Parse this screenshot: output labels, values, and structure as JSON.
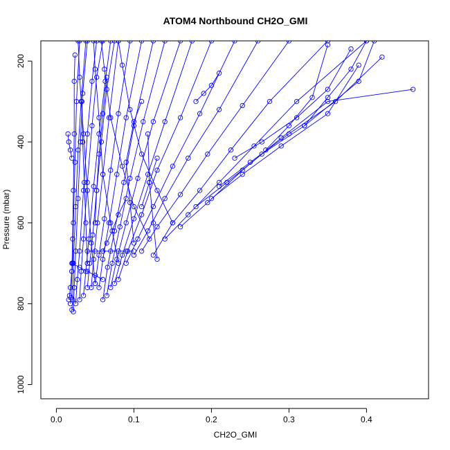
{
  "chart_data": {
    "type": "line",
    "title": "ATOM4 Northbound CH2O_GMI",
    "xlabel": "CH2O_GMI",
    "ylabel": "Pressure (mbar)",
    "xlim": [
      -0.02,
      0.48
    ],
    "ylim": [
      1035,
      150
    ],
    "y_reversed": true,
    "grid": false,
    "legend": "none",
    "x_ticks": [
      0.0,
      0.1,
      0.2,
      0.3,
      0.4
    ],
    "x_tick_labels": [
      "0.0",
      "0.1",
      "0.2",
      "0.3",
      "0.4"
    ],
    "y_ticks": [
      200,
      400,
      600,
      800,
      1000
    ],
    "y_tick_labels": [
      "200",
      "400",
      "600",
      "800",
      "1000"
    ],
    "marker": "open-circle",
    "color": "#0000ff",
    "series": [
      {
        "x": [
          0.016,
          0.017,
          0.018,
          0.02,
          0.021,
          0.022,
          0.024,
          0.026,
          0.03
        ],
        "y": [
          790,
          780,
          760,
          720,
          700,
          600,
          450,
          300,
          150
        ]
      },
      {
        "x": [
          0.018,
          0.019,
          0.02,
          0.021,
          0.022,
          0.023,
          0.023,
          0.024
        ],
        "y": [
          800,
          785,
          720,
          640,
          520,
          380,
          250,
          185
        ]
      },
      {
        "x": [
          0.02,
          0.021,
          0.022,
          0.025,
          0.028,
          0.032,
          0.038
        ],
        "y": [
          815,
          790,
          700,
          560,
          420,
          300,
          150
        ]
      },
      {
        "x": [
          0.022,
          0.023,
          0.025,
          0.028,
          0.031,
          0.034,
          0.04
        ],
        "y": [
          820,
          760,
          670,
          540,
          400,
          280,
          150
        ]
      },
      {
        "x": [
          0.025,
          0.027,
          0.03,
          0.035,
          0.04,
          0.046,
          0.052
        ],
        "y": [
          800,
          740,
          670,
          520,
          380,
          250,
          150
        ]
      },
      {
        "x": [
          0.03,
          0.032,
          0.035,
          0.04,
          0.046,
          0.052,
          0.06
        ],
        "y": [
          790,
          720,
          640,
          500,
          360,
          240,
          150
        ]
      },
      {
        "x": [
          0.035,
          0.038,
          0.042,
          0.048,
          0.055,
          0.063,
          0.07
        ],
        "y": [
          780,
          720,
          640,
          510,
          380,
          250,
          150
        ]
      },
      {
        "x": [
          0.04,
          0.043,
          0.047,
          0.052,
          0.058,
          0.065,
          0.075
        ],
        "y": [
          760,
          700,
          630,
          520,
          400,
          270,
          150
        ]
      },
      {
        "x": [
          0.045,
          0.048,
          0.053,
          0.06,
          0.068,
          0.08
        ],
        "y": [
          760,
          690,
          600,
          480,
          340,
          150
        ]
      },
      {
        "x": [
          0.05,
          0.055,
          0.062,
          0.07,
          0.08,
          0.095
        ],
        "y": [
          750,
          680,
          590,
          470,
          330,
          150
        ]
      },
      {
        "x": [
          0.055,
          0.06,
          0.068,
          0.078,
          0.09,
          0.11
        ],
        "y": [
          760,
          690,
          600,
          480,
          340,
          150
        ]
      },
      {
        "x": [
          0.06,
          0.066,
          0.075,
          0.087,
          0.1,
          0.125
        ],
        "y": [
          790,
          710,
          620,
          500,
          360,
          150
        ]
      },
      {
        "x": [
          0.065,
          0.072,
          0.082,
          0.095,
          0.112,
          0.14
        ],
        "y": [
          780,
          700,
          610,
          490,
          350,
          150
        ]
      },
      {
        "x": [
          0.07,
          0.078,
          0.09,
          0.105,
          0.125,
          0.16
        ],
        "y": [
          760,
          690,
          600,
          490,
          350,
          150
        ]
      },
      {
        "x": [
          0.075,
          0.085,
          0.1,
          0.118,
          0.14,
          0.175
        ],
        "y": [
          750,
          680,
          590,
          480,
          350,
          150
        ]
      },
      {
        "x": [
          0.08,
          0.092,
          0.11,
          0.13,
          0.16,
          0.2
        ],
        "y": [
          740,
          670,
          580,
          470,
          340,
          150
        ]
      },
      {
        "x": [
          0.09,
          0.105,
          0.125,
          0.15,
          0.185,
          0.23
        ],
        "y": [
          700,
          640,
          560,
          460,
          330,
          150
        ]
      },
      {
        "x": [
          0.1,
          0.118,
          0.14,
          0.17,
          0.21,
          0.26
        ],
        "y": [
          680,
          620,
          540,
          440,
          320,
          150
        ]
      },
      {
        "x": [
          0.11,
          0.13,
          0.16,
          0.195,
          0.24,
          0.3
        ],
        "y": [
          670,
          610,
          530,
          430,
          310,
          150
        ]
      },
      {
        "x": [
          0.125,
          0.15,
          0.185,
          0.225,
          0.275,
          0.35
        ],
        "y": [
          680,
          600,
          520,
          420,
          300,
          150
        ]
      },
      {
        "x": [
          0.14,
          0.17,
          0.21,
          0.255,
          0.31,
          0.4
        ],
        "y": [
          640,
          580,
          500,
          410,
          300,
          150
        ]
      },
      {
        "x": [
          0.16,
          0.195,
          0.24,
          0.29,
          0.35,
          0.46
        ],
        "y": [
          610,
          550,
          470,
          390,
          300,
          270
        ]
      },
      {
        "x": [
          0.18,
          0.22,
          0.265,
          0.32,
          0.39,
          0.41
        ],
        "y": [
          560,
          500,
          430,
          360,
          250,
          150
        ]
      },
      {
        "x": [
          0.2,
          0.24,
          0.29,
          0.35,
          0.39
        ],
        "y": [
          540,
          480,
          410,
          330,
          210
        ]
      },
      {
        "x": [
          0.21,
          0.25,
          0.3,
          0.36,
          0.42
        ],
        "y": [
          510,
          450,
          380,
          300,
          190
        ]
      },
      {
        "x": [
          0.23,
          0.265,
          0.31,
          0.35,
          0.38
        ],
        "y": [
          440,
          400,
          340,
          270,
          170
        ]
      },
      {
        "x": [
          0.05,
          0.045,
          0.04,
          0.035,
          0.03,
          0.028
        ],
        "y": [
          750,
          650,
          520,
          380,
          240,
          150
        ]
      },
      {
        "x": [
          0.08,
          0.07,
          0.06,
          0.055,
          0.05,
          0.048
        ],
        "y": [
          700,
          600,
          480,
          340,
          220,
          150
        ]
      },
      {
        "x": [
          0.12,
          0.1,
          0.085,
          0.07,
          0.062,
          0.058
        ],
        "y": [
          640,
          560,
          460,
          340,
          220,
          150
        ]
      },
      {
        "x": [
          0.15,
          0.13,
          0.11,
          0.095,
          0.085,
          0.08
        ],
        "y": [
          600,
          520,
          430,
          320,
          210,
          150
        ]
      },
      {
        "x": [
          0.015,
          0.016,
          0.018,
          0.02
        ],
        "y": [
          380,
          400,
          420,
          440
        ]
      },
      {
        "x": [
          0.27,
          0.3,
          0.33,
          0.35
        ],
        "y": [
          420,
          360,
          290,
          160
        ]
      },
      {
        "x": [
          0.32,
          0.35,
          0.38,
          0.4
        ],
        "y": [
          360,
          290,
          220,
          150
        ]
      },
      {
        "x": [
          0.18,
          0.19,
          0.2,
          0.21
        ],
        "y": [
          300,
          280,
          260,
          230
        ]
      },
      {
        "x": [
          0.1,
          0.095,
          0.09,
          0.1,
          0.11
        ],
        "y": [
          650,
          550,
          450,
          350,
          300
        ]
      },
      {
        "x": [
          0.13,
          0.125,
          0.12,
          0.118
        ],
        "y": [
          690,
          600,
          500,
          380
        ]
      },
      {
        "x": [
          0.06,
          0.065,
          0.072,
          0.08,
          0.09
        ],
        "y": [
          670,
          650,
          620,
          580,
          540
        ]
      },
      {
        "x": [
          0.04,
          0.05,
          0.06,
          0.07,
          0.08,
          0.09,
          0.1
        ],
        "y": [
          670,
          670,
          670,
          670,
          670,
          670,
          670
        ]
      },
      {
        "x": [
          0.02,
          0.03,
          0.04,
          0.05,
          0.06
        ],
        "y": [
          700,
          710,
          720,
          730,
          740
        ]
      },
      {
        "x": [
          0.11,
          0.12,
          0.13
        ],
        "y": [
          560,
          500,
          440
        ]
      },
      {
        "x": [
          0.05,
          0.052,
          0.055,
          0.06,
          0.065
        ],
        "y": [
          600,
          520,
          430,
          330,
          240
        ]
      },
      {
        "x": [
          0.04,
          0.038,
          0.036,
          0.034,
          0.033
        ],
        "y": [
          700,
          600,
          500,
          400,
          300
        ]
      }
    ]
  }
}
